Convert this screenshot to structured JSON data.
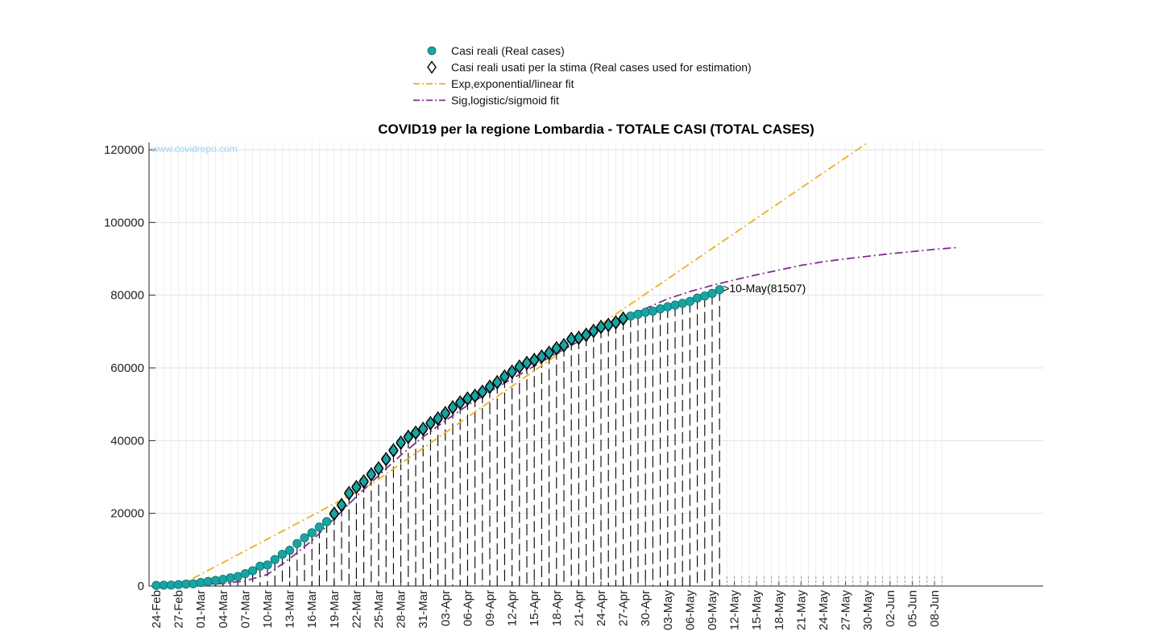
{
  "chart_data": {
    "type": "line",
    "title": "COVID19 per la regione Lombardia - TOTALE CASI (TOTAL CASES)",
    "watermark": "www.covidrepo.com",
    "xlabel": "",
    "ylabel": "",
    "x_start": "24-Feb",
    "x_day_count": 107,
    "x_tick_labels": [
      "24-Feb",
      "27-Feb",
      "01-Mar",
      "04-Mar",
      "07-Mar",
      "10-Mar",
      "13-Mar",
      "16-Mar",
      "19-Mar",
      "22-Mar",
      "25-Mar",
      "28-Mar",
      "31-Mar",
      "03-Apr",
      "06-Apr",
      "09-Apr",
      "12-Apr",
      "15-Apr",
      "18-Apr",
      "21-Apr",
      "24-Apr",
      "27-Apr",
      "30-Apr",
      "03-May",
      "06-May",
      "09-May",
      "12-May",
      "15-May",
      "18-May",
      "21-May",
      "24-May",
      "27-May",
      "30-May",
      "02-Jun",
      "05-Jun",
      "08-Jun"
    ],
    "y_ticks": [
      0,
      20000,
      40000,
      60000,
      80000,
      100000,
      120000
    ],
    "y_tick_labels": [
      "0",
      "20000",
      "40000",
      "60000",
      "80000",
      "100000",
      "120000"
    ],
    "ylim": [
      0,
      122000
    ],
    "grid": true,
    "legend_position": "top-center",
    "legend": [
      {
        "label": "Casi reali (Real cases)",
        "marker": "circle",
        "color": "#17a5a3"
      },
      {
        "label": "Casi reali usati per la stima (Real cases used for estimation)",
        "marker": "diamond",
        "color": "#000000"
      },
      {
        "label": "Exp,exponential/linear fit",
        "marker": "dash-dot",
        "color": "#edb120"
      },
      {
        "label": "Sig,logistic/sigmoid fit",
        "marker": "dash-dot",
        "color": "#7e2f8e"
      }
    ],
    "series": [
      {
        "name": "Casi reali (Real cases)",
        "x": [
          "24-Feb",
          "25-Feb",
          "26-Feb",
          "27-Feb",
          "28-Feb",
          "29-Feb",
          "01-Mar",
          "02-Mar",
          "03-Mar",
          "04-Mar",
          "05-Mar",
          "06-Mar",
          "07-Mar",
          "08-Mar",
          "09-Mar",
          "10-Mar",
          "11-Mar",
          "12-Mar",
          "13-Mar",
          "14-Mar",
          "15-Mar",
          "16-Mar",
          "17-Mar",
          "18-Mar",
          "19-Mar",
          "20-Mar",
          "21-Mar",
          "22-Mar",
          "23-Mar",
          "24-Mar",
          "25-Mar",
          "26-Mar",
          "27-Mar",
          "28-Mar",
          "29-Mar",
          "30-Mar",
          "31-Mar",
          "01-Apr",
          "02-Apr",
          "03-Apr",
          "04-Apr",
          "05-Apr",
          "06-Apr",
          "07-Apr",
          "08-Apr",
          "09-Apr",
          "10-Apr",
          "11-Apr",
          "12-Apr",
          "13-Apr",
          "14-Apr",
          "15-Apr",
          "16-Apr",
          "17-Apr",
          "18-Apr",
          "19-Apr",
          "20-Apr",
          "21-Apr",
          "22-Apr",
          "23-Apr",
          "24-Apr",
          "25-Apr",
          "26-Apr",
          "27-Apr",
          "28-Apr",
          "29-Apr",
          "30-Apr",
          "01-May",
          "02-May",
          "03-May",
          "04-May",
          "05-May",
          "06-May",
          "07-May",
          "08-May",
          "09-May",
          "10-May"
        ],
        "y": [
          172,
          240,
          258,
          403,
          531,
          615,
          984,
          1254,
          1520,
          1820,
          2251,
          2612,
          3420,
          4189,
          5469,
          5791,
          7280,
          8725,
          9820,
          11685,
          13272,
          14649,
          16220,
          17713,
          19884,
          22264,
          25515,
          27206,
          28761,
          30703,
          32346,
          34889,
          37298,
          39415,
          41007,
          42161,
          43208,
          44773,
          46065,
          47520,
          49118,
          50455,
          51534,
          52325,
          53414,
          54802,
          56048,
          57592,
          58933,
          60314,
          61326,
          62153,
          63094,
          64135,
          65381,
          66236,
          67931,
          68264,
          69092,
          70166,
          71233,
          71788,
          72519,
          73528,
          74265,
          74760,
          75296,
          75611,
          76247,
          76822,
          77268,
          77743,
          78279,
          79209,
          79780,
          80479,
          81507
        ],
        "color": "#17a5a3"
      },
      {
        "name": "Casi reali usati per la stima (Real cases used for estimation)",
        "x": [
          "19-Mar",
          "20-Mar",
          "21-Mar",
          "22-Mar",
          "23-Mar",
          "24-Mar",
          "25-Mar",
          "26-Mar",
          "27-Mar",
          "28-Mar",
          "29-Mar",
          "30-Mar",
          "31-Mar",
          "01-Apr",
          "02-Apr",
          "03-Apr",
          "04-Apr",
          "05-Apr",
          "06-Apr",
          "07-Apr",
          "08-Apr",
          "09-Apr",
          "10-Apr",
          "11-Apr",
          "12-Apr",
          "13-Apr",
          "14-Apr",
          "15-Apr",
          "16-Apr",
          "17-Apr",
          "18-Apr",
          "19-Apr",
          "20-Apr",
          "21-Apr",
          "22-Apr",
          "23-Apr",
          "24-Apr",
          "25-Apr",
          "26-Apr",
          "27-Apr"
        ],
        "y": [
          19884,
          22264,
          25515,
          27206,
          28761,
          30703,
          32346,
          34889,
          37298,
          39415,
          41007,
          42161,
          43208,
          44773,
          46065,
          47520,
          49118,
          50455,
          51534,
          52325,
          53414,
          54802,
          56048,
          57592,
          58933,
          60314,
          61326,
          62153,
          63094,
          64135,
          65381,
          66236,
          67931,
          68264,
          69092,
          70166,
          71233,
          71788,
          72519,
          73528
        ],
        "color": "#000000"
      },
      {
        "name": "Exp,exponential/linear fit",
        "x": [
          "27-Feb",
          "24-Mar",
          "24-Apr",
          "30-May"
        ],
        "y": [
          0,
          28000,
          72000,
          122000
        ],
        "color": "#edb120"
      },
      {
        "name": "Sig,logistic/sigmoid fit",
        "x": [
          "01-Mar",
          "04-Mar",
          "07-Mar",
          "10-Mar",
          "13-Mar",
          "16-Mar",
          "19-Mar",
          "22-Mar",
          "25-Mar",
          "28-Mar",
          "31-Mar",
          "03-Apr",
          "06-Apr",
          "09-Apr",
          "12-Apr",
          "15-Apr",
          "18-Apr",
          "21-Apr",
          "24-Apr",
          "27-Apr",
          "30-Apr",
          "03-May",
          "06-May",
          "09-May",
          "12-May",
          "15-May",
          "18-May",
          "21-May",
          "24-May",
          "27-May",
          "30-May",
          "02-Jun",
          "05-Jun",
          "08-Jun",
          "11-Jun"
        ],
        "y": [
          400,
          700,
          1400,
          3200,
          7500,
          12500,
          18500,
          24600,
          30400,
          36000,
          41000,
          45500,
          49700,
          53500,
          57000,
          60500,
          64000,
          67300,
          70500,
          73500,
          76300,
          79000,
          81000,
          82700,
          84200,
          85600,
          86900,
          88200,
          89200,
          90000,
          90700,
          91400,
          92000,
          92600,
          93100
        ],
        "color": "#7e2f8e"
      }
    ],
    "annotations": [
      {
        "text": ">10-May(81507)",
        "x": "10-May",
        "y": 81507
      }
    ]
  }
}
